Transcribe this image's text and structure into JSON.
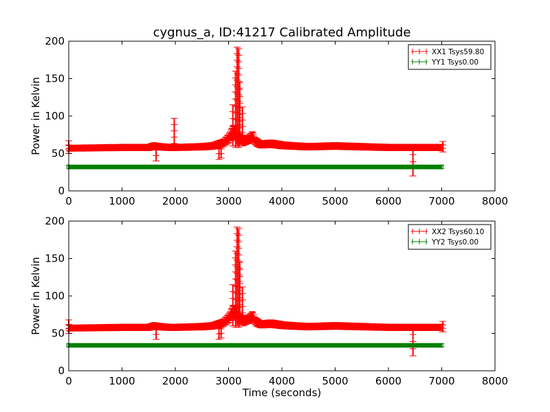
{
  "chart_data": [
    {
      "type": "scatter",
      "title": "cygnus_a, ID:41217 Calibrated Amplitude",
      "xlabel": "",
      "ylabel": "Power in Kelvin",
      "xlim": [
        0,
        8000
      ],
      "ylim": [
        0,
        200
      ],
      "xticks": [
        "0",
        "1000",
        "2000",
        "3000",
        "4000",
        "5000",
        "6000",
        "7000",
        "8000"
      ],
      "yticks": [
        "0",
        "50",
        "100",
        "150",
        "200"
      ],
      "legend_position": "top-right",
      "series": [
        {
          "name": "XX1 Tsys59.80",
          "color": "#ff0000",
          "baseline_x": [
            0,
            1000,
            1500,
            1600,
            1700,
            1900,
            2000,
            2500,
            2700,
            2800,
            2900,
            3000,
            3050,
            3100,
            3150,
            3200,
            3300,
            3400,
            3450,
            3500,
            3600,
            3800,
            4000,
            4200,
            4500,
            5000,
            5500,
            6000,
            6500,
            7000
          ],
          "baseline_y": [
            57,
            58,
            58,
            60,
            59,
            58,
            58,
            59,
            60,
            62,
            64,
            70,
            76,
            80,
            75,
            70,
            67,
            70,
            73,
            66,
            62,
            63,
            61,
            60,
            59,
            60,
            59,
            58,
            58,
            58
          ],
          "spikes": [
            {
              "x": 0,
              "min": 50,
              "max": 67
            },
            {
              "x": 1640,
              "min": 40,
              "max": 62
            },
            {
              "x": 1980,
              "min": 55,
              "max": 97
            },
            {
              "x": 2820,
              "min": 42,
              "max": 65
            },
            {
              "x": 2860,
              "min": 44,
              "max": 62
            },
            {
              "x": 3080,
              "min": 60,
              "max": 115
            },
            {
              "x": 3130,
              "min": 58,
              "max": 160
            },
            {
              "x": 3160,
              "min": 60,
              "max": 192
            },
            {
              "x": 3190,
              "min": 58,
              "max": 190
            },
            {
              "x": 3210,
              "min": 60,
              "max": 145
            },
            {
              "x": 3260,
              "min": 60,
              "max": 112
            },
            {
              "x": 6460,
              "min": 20,
              "max": 58
            },
            {
              "x": 7020,
              "min": 52,
              "max": 66
            }
          ]
        },
        {
          "name": "YY1 Tsys0.00",
          "color": "#008000",
          "baseline_x": [
            0,
            7000
          ],
          "baseline_y": [
            32,
            32
          ],
          "spikes": []
        }
      ]
    },
    {
      "type": "scatter",
      "title": "",
      "xlabel": "Time (seconds)",
      "ylabel": "Power in Kelvin",
      "xlim": [
        0,
        8000
      ],
      "ylim": [
        0,
        200
      ],
      "xticks": [
        "0",
        "1000",
        "2000",
        "3000",
        "4000",
        "5000",
        "6000",
        "7000",
        "8000"
      ],
      "yticks": [
        "0",
        "50",
        "100",
        "150",
        "200"
      ],
      "legend_position": "top-right",
      "series": [
        {
          "name": "XX2 Tsys60.10",
          "color": "#ff0000",
          "baseline_x": [
            0,
            1000,
            1500,
            1600,
            1700,
            1900,
            2000,
            2500,
            2700,
            2800,
            2900,
            3000,
            3050,
            3100,
            3150,
            3200,
            3300,
            3400,
            3450,
            3500,
            3600,
            3800,
            4000,
            4200,
            4500,
            5000,
            5500,
            6000,
            6500,
            7000
          ],
          "baseline_y": [
            57,
            58,
            58,
            60,
            59,
            58,
            58,
            59,
            60,
            62,
            64,
            70,
            76,
            80,
            75,
            70,
            67,
            70,
            73,
            66,
            62,
            63,
            61,
            60,
            59,
            60,
            59,
            58,
            58,
            58
          ],
          "spikes": [
            {
              "x": 0,
              "min": 50,
              "max": 68
            },
            {
              "x": 1640,
              "min": 42,
              "max": 62
            },
            {
              "x": 2820,
              "min": 42,
              "max": 64
            },
            {
              "x": 2860,
              "min": 44,
              "max": 62
            },
            {
              "x": 3080,
              "min": 60,
              "max": 115
            },
            {
              "x": 3130,
              "min": 58,
              "max": 160
            },
            {
              "x": 3160,
              "min": 60,
              "max": 192
            },
            {
              "x": 3190,
              "min": 58,
              "max": 190
            },
            {
              "x": 3210,
              "min": 60,
              "max": 145
            },
            {
              "x": 3260,
              "min": 60,
              "max": 112
            },
            {
              "x": 6460,
              "min": 20,
              "max": 58
            },
            {
              "x": 7020,
              "min": 52,
              "max": 66
            }
          ]
        },
        {
          "name": "YY2 Tsys0.00",
          "color": "#008000",
          "baseline_x": [
            0,
            7000
          ],
          "baseline_y": [
            34,
            34
          ],
          "spikes": []
        }
      ]
    }
  ]
}
